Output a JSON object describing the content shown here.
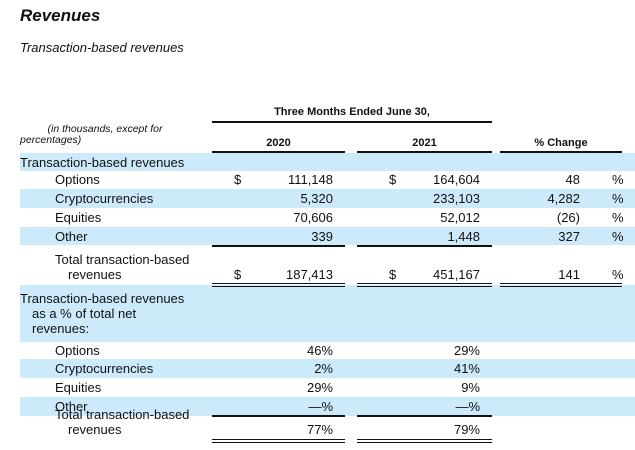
{
  "title": "Revenues",
  "subtitle": "Transaction-based revenues",
  "table": {
    "period_header": "Three Months Ended June 30,",
    "units_note_line1": "(in thousands, except for",
    "units_note_line2": "percentages)",
    "col_2020": "2020",
    "col_2021": "2021",
    "col_change": "% Change",
    "rows": [
      {
        "label": [
          "Transaction-based revenues"
        ],
        "kind": "section"
      },
      {
        "label": [
          "Options"
        ],
        "cur1": "$",
        "v2020": "111,148",
        "cur2": "$",
        "v2021": "164,604",
        "change": "48",
        "pct": "%"
      },
      {
        "label": [
          "Cryptocurrencies"
        ],
        "v2020": "5,320",
        "v2021": "233,103",
        "change": "4,282",
        "pct": "%"
      },
      {
        "label": [
          "Equities"
        ],
        "v2020": "70,606",
        "v2021": "52,012",
        "change": "(26)",
        "pct": "%"
      },
      {
        "label": [
          "Other"
        ],
        "v2020": "339",
        "v2021": "1,448",
        "change": "327",
        "pct": "%"
      },
      {
        "label": [
          "Total transaction-based",
          "revenues"
        ],
        "kind": "total",
        "cur1": "$",
        "v2020": "187,413",
        "cur2": "$",
        "v2021": "451,167",
        "change": "141",
        "pct": "%"
      },
      {
        "label": [
          "Transaction-based revenues",
          "as a % of total net",
          "revenues:"
        ],
        "kind": "section"
      },
      {
        "label": [
          "Options"
        ],
        "v2020": "46%",
        "v2021": "29%"
      },
      {
        "label": [
          "Cryptocurrencies"
        ],
        "v2020": "2%",
        "v2021": "41%"
      },
      {
        "label": [
          "Equities"
        ],
        "v2020": "29%",
        "v2021": "9%"
      },
      {
        "label": [
          "Other"
        ],
        "v2020": "—%",
        "v2021": "—%"
      },
      {
        "label": [
          "Total transaction-based",
          "revenues"
        ],
        "kind": "total",
        "v2020": "77%",
        "v2021": "79%"
      }
    ]
  }
}
